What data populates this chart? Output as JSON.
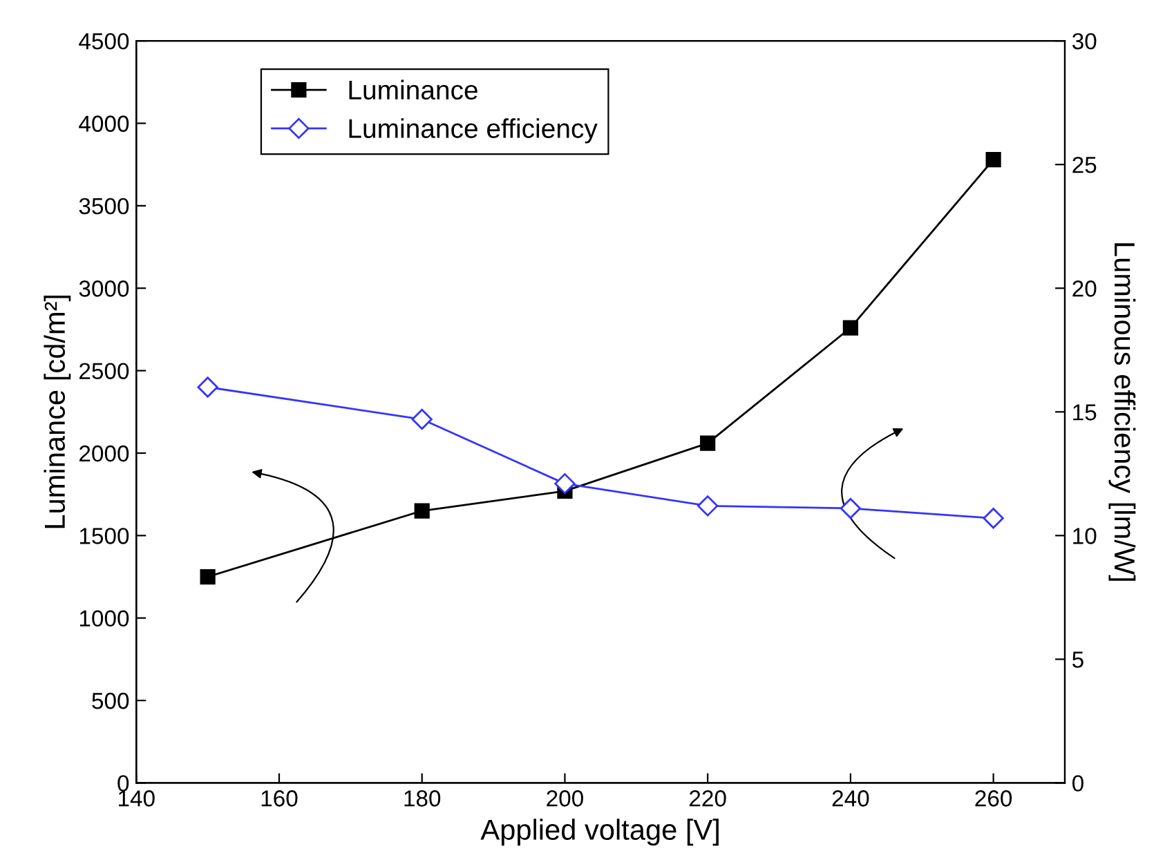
{
  "chart_data": {
    "type": "line",
    "xlabel": "Applied voltage [V]",
    "ylabel": "Luminance [cd/m²]",
    "y2label": "Luminous efficiency [lm/W]",
    "x": [
      150,
      180,
      200,
      220,
      240,
      260
    ],
    "series": [
      {
        "name": "Luminance",
        "color": "#000000",
        "marker": "square",
        "values": [
          1250,
          1650,
          1770,
          2060,
          2760,
          3780
        ]
      },
      {
        "name": "Luminance efficiency",
        "color": "#3333ff",
        "marker": "diamond",
        "axis": "y2",
        "values": [
          16.0,
          14.7,
          12.1,
          11.2,
          11.1,
          10.7
        ]
      }
    ],
    "xlim": [
      140,
      270
    ],
    "xticks": [
      140,
      160,
      180,
      200,
      220,
      240,
      260
    ],
    "ylim": [
      0,
      4500
    ],
    "yticks": [
      0,
      500,
      1000,
      1500,
      2000,
      2500,
      3000,
      3500,
      4000,
      4500
    ],
    "y2lim": [
      0,
      30
    ],
    "y2ticks": [
      0,
      5,
      10,
      15,
      20,
      25,
      30
    ],
    "legend": "top left",
    "grid": false,
    "line_style": "solid"
  }
}
